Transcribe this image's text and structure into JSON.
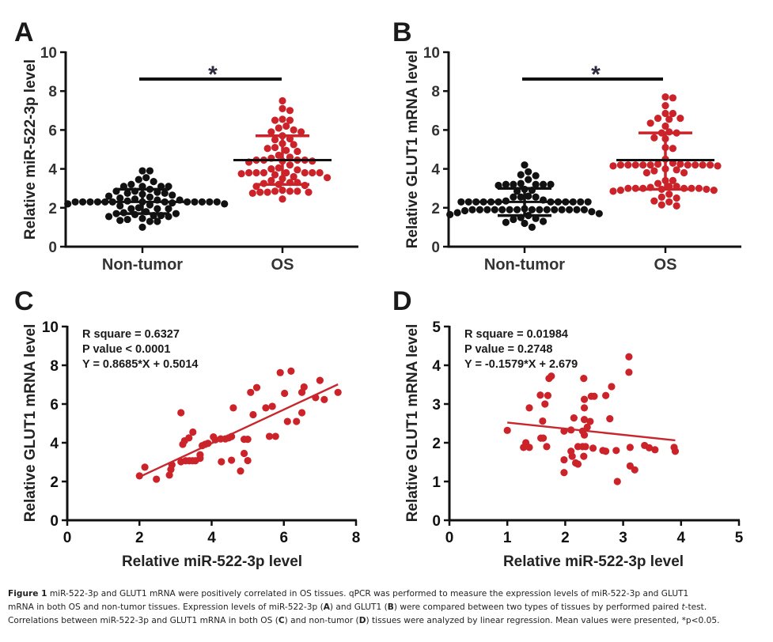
{
  "colors": {
    "nontumor": "#111111",
    "os": "#cc2229",
    "axis": "#111111",
    "mean_line": "#111111",
    "regression": "#c8262d"
  },
  "caption": {
    "label": "Figure 1",
    "line1_rest": " miR-522-3p and GLUT1 mRNA were positively correlated in OS tissues. qPCR was performed to measure the expression levels of miR-522-3p and GLUT1",
    "line2_a": "mRNA in both OS and non-tumor tissues. Expression levels of miR-522-3p (",
    "line2_b": "A",
    "line2_c": ") and GLUT1 (",
    "line2_d": "B",
    "line2_e": ") were compared between two types of tissues by performed paired ",
    "line2_f": "t",
    "line2_g": "-test.",
    "line3_a": "Correlations between miR-522-3p and GLUT1 mRNA in both OS (",
    "line3_b": "C",
    "line3_c": ") and non-tumor (",
    "line3_d": "D",
    "line3_e": ") tissues were analyzed by linear regression. Mean values were presented, *p<0.05."
  },
  "chart_data": [
    {
      "panel": "A",
      "type": "scatter",
      "subtype": "dot-plot-mean-sd",
      "title": "",
      "xlabel": "",
      "ylabel": "Relative miR-522-3p level",
      "ylim": [
        0,
        10
      ],
      "yticks": [
        "0",
        "2",
        "4",
        "6",
        "8",
        "10"
      ],
      "categories": [
        "Non-tumor",
        "OS"
      ],
      "significance": {
        "label": "*",
        "between": [
          "Non-tumor",
          "OS"
        ],
        "y": 8.6
      },
      "series": [
        {
          "name": "Non-tumor",
          "color": "#111111",
          "mean": 2.3,
          "sd_low": 1.7,
          "sd_high": 2.95,
          "values": [
            3.9,
            3.9,
            3.55,
            3.45,
            3.35,
            3.2,
            3.1,
            3.1,
            3.1,
            3.1,
            2.95,
            2.85,
            2.85,
            2.8,
            2.75,
            2.75,
            2.7,
            2.65,
            2.6,
            2.55,
            2.5,
            2.45,
            2.4,
            2.4,
            2.35,
            2.3,
            2.3,
            2.3,
            2.3,
            2.3,
            2.3,
            2.3,
            2.3,
            2.3,
            2.3,
            2.3,
            2.3,
            2.3,
            2.25,
            2.2,
            2.2,
            2.15,
            2.1,
            2.0,
            1.95,
            1.95,
            1.95,
            1.8,
            1.75,
            1.7,
            1.7,
            1.65,
            1.6,
            1.6,
            1.55,
            1.55,
            1.45,
            1.4,
            1.35,
            1.3,
            1.3,
            1.0
          ]
        },
        {
          "name": "OS",
          "color": "#cc2229",
          "mean": 4.45,
          "sd_low": 3.2,
          "sd_high": 5.7,
          "values": [
            7.5,
            7.1,
            7.0,
            6.55,
            6.5,
            6.5,
            6.2,
            6.1,
            6.0,
            5.9,
            5.9,
            5.7,
            5.55,
            5.5,
            5.3,
            5.25,
            5.1,
            5.05,
            4.95,
            4.9,
            4.7,
            4.6,
            4.55,
            4.45,
            4.45,
            4.45,
            4.45,
            4.4,
            4.4,
            4.35,
            4.2,
            4.05,
            4.0,
            3.95,
            3.8,
            3.8,
            3.8,
            3.8,
            3.8,
            3.8,
            3.8,
            3.75,
            3.7,
            3.6,
            3.55,
            3.5,
            3.4,
            3.3,
            3.3,
            3.25,
            3.2,
            3.15,
            3.1,
            2.9,
            2.85,
            2.85,
            2.85,
            2.8,
            2.8,
            2.8,
            2.75,
            2.45
          ]
        }
      ]
    },
    {
      "panel": "B",
      "type": "scatter",
      "subtype": "dot-plot-mean-sd",
      "title": "",
      "xlabel": "",
      "ylabel": "Relative GLUT1 mRNA level",
      "ylim": [
        0,
        10
      ],
      "yticks": [
        "0",
        "2",
        "4",
        "6",
        "8",
        "10"
      ],
      "categories": [
        "Non-tumor",
        "OS"
      ],
      "significance": {
        "label": "*",
        "between": [
          "Non-tumor",
          "OS"
        ],
        "y": 8.5
      },
      "series": [
        {
          "name": "Non-tumor",
          "color": "#111111",
          "mean": 2.3,
          "sd_low": 1.6,
          "sd_high": 3.0,
          "values": [
            4.2,
            3.85,
            3.7,
            3.65,
            3.45,
            3.25,
            3.2,
            3.2,
            3.2,
            3.2,
            3.2,
            3.15,
            2.95,
            2.9,
            2.85,
            2.6,
            2.55,
            2.55,
            2.55,
            2.4,
            2.35,
            2.3,
            2.3,
            2.3,
            2.3,
            2.3,
            2.3,
            2.3,
            2.3,
            2.3,
            2.3,
            2.3,
            2.3,
            1.95,
            1.9,
            1.9,
            1.9,
            1.9,
            1.9,
            1.9,
            1.9,
            1.9,
            1.9,
            1.9,
            1.9,
            1.9,
            1.9,
            1.9,
            1.9,
            1.85,
            1.8,
            1.75,
            1.7,
            1.65,
            1.6,
            1.5,
            1.45,
            1.4,
            1.3,
            1.25,
            1.2,
            1.0
          ]
        },
        {
          "name": "OS",
          "color": "#cc2229",
          "mean": 4.45,
          "sd_low": 2.95,
          "sd_high": 5.85,
          "values": [
            7.7,
            7.65,
            7.25,
            6.85,
            6.85,
            6.6,
            6.6,
            6.55,
            6.35,
            6.2,
            5.9,
            5.85,
            5.85,
            5.6,
            5.55,
            5.1,
            5.05,
            4.5,
            4.3,
            4.25,
            4.25,
            4.2,
            4.2,
            4.2,
            4.2,
            4.2,
            4.2,
            4.2,
            4.2,
            4.2,
            4.15,
            4.15,
            4.0,
            3.95,
            3.9,
            3.8,
            3.8,
            3.4,
            3.4,
            3.25,
            3.1,
            3.1,
            3.05,
            3.0,
            3.0,
            3.0,
            3.0,
            3.0,
            3.0,
            2.95,
            2.95,
            2.9,
            2.9,
            2.85,
            2.7,
            2.55,
            2.5,
            2.35,
            2.3,
            2.15,
            2.1
          ]
        }
      ]
    },
    {
      "panel": "C",
      "type": "scatter",
      "title": "",
      "xlabel": "Relative miR-522-3p level",
      "ylabel": "Relative GLUT1 mRNA level",
      "xlim": [
        0,
        8
      ],
      "ylim": [
        0,
        10
      ],
      "xticks": [
        "0",
        "2",
        "4",
        "6",
        "8"
      ],
      "yticks": [
        "0",
        "2",
        "4",
        "6",
        "8",
        "10"
      ],
      "annotations": [
        "R square = 0.6327",
        "P value < 0.0001",
        "Y = 0.8685*X + 0.5014"
      ],
      "regression": {
        "slope": 0.8685,
        "intercept": 0.5014,
        "x_range": [
          2.0,
          7.5
        ]
      },
      "color": "#cc2229",
      "points": [
        [
          2.0,
          2.29
        ],
        [
          2.15,
          2.74
        ],
        [
          2.47,
          2.12
        ],
        [
          2.83,
          2.33
        ],
        [
          2.87,
          2.62
        ],
        [
          2.9,
          2.86
        ],
        [
          3.15,
          5.55
        ],
        [
          3.15,
          3.02
        ],
        [
          3.2,
          3.92
        ],
        [
          3.25,
          4.1
        ],
        [
          3.37,
          4.25
        ],
        [
          3.48,
          4.55
        ],
        [
          3.28,
          3.07
        ],
        [
          3.38,
          3.07
        ],
        [
          3.47,
          3.07
        ],
        [
          3.55,
          3.07
        ],
        [
          3.68,
          3.2
        ],
        [
          3.68,
          3.38
        ],
        [
          3.74,
          3.85
        ],
        [
          3.82,
          3.92
        ],
        [
          3.9,
          3.97
        ],
        [
          4.05,
          4.3
        ],
        [
          4.1,
          4.15
        ],
        [
          4.25,
          4.2
        ],
        [
          4.38,
          4.2
        ],
        [
          4.47,
          4.25
        ],
        [
          4.55,
          4.32
        ],
        [
          4.27,
          3.02
        ],
        [
          4.55,
          3.1
        ],
        [
          4.6,
          5.8
        ],
        [
          4.8,
          2.54
        ],
        [
          4.9,
          3.45
        ],
        [
          4.9,
          4.18
        ],
        [
          5.0,
          4.18
        ],
        [
          5.0,
          3.08
        ],
        [
          5.08,
          6.6
        ],
        [
          5.15,
          5.45
        ],
        [
          5.25,
          6.85
        ],
        [
          5.5,
          5.8
        ],
        [
          5.68,
          5.88
        ],
        [
          5.6,
          4.33
        ],
        [
          5.77,
          4.33
        ],
        [
          5.9,
          7.62
        ],
        [
          6.02,
          6.55
        ],
        [
          6.1,
          5.1
        ],
        [
          6.2,
          7.7
        ],
        [
          6.35,
          5.1
        ],
        [
          6.5,
          6.6
        ],
        [
          6.56,
          6.88
        ],
        [
          6.5,
          5.55
        ],
        [
          6.88,
          6.33
        ],
        [
          7.0,
          7.22
        ],
        [
          7.12,
          6.23
        ],
        [
          7.5,
          6.6
        ]
      ]
    },
    {
      "panel": "D",
      "type": "scatter",
      "title": "",
      "xlabel": "Relative miR-522-3p level",
      "ylabel": "Relative GLUT1 mRNA level",
      "xlim": [
        0,
        5
      ],
      "ylim": [
        0,
        5
      ],
      "xticks": [
        "0",
        "1",
        "2",
        "3",
        "4",
        "5"
      ],
      "yticks": [
        "0",
        "1",
        "2",
        "3",
        "4",
        "5"
      ],
      "annotations": [
        "R square = 0.01984",
        "P value = 0.2748",
        "Y = -0.1579*X + 2.679"
      ],
      "regression": {
        "slope": -0.1579,
        "intercept": 2.679,
        "x_range": [
          1.0,
          3.9
        ]
      },
      "color": "#cc2229",
      "points": [
        [
          1.0,
          2.32
        ],
        [
          1.28,
          1.88
        ],
        [
          1.32,
          2.0
        ],
        [
          1.33,
          1.92
        ],
        [
          1.38,
          1.88
        ],
        [
          1.38,
          2.9
        ],
        [
          1.57,
          3.23
        ],
        [
          1.58,
          2.12
        ],
        [
          1.62,
          2.12
        ],
        [
          1.61,
          2.56
        ],
        [
          1.65,
          3.0
        ],
        [
          1.68,
          1.9
        ],
        [
          1.7,
          3.22
        ],
        [
          1.72,
          3.66
        ],
        [
          1.76,
          3.72
        ],
        [
          1.98,
          2.3
        ],
        [
          1.98,
          1.56
        ],
        [
          1.98,
          1.23
        ],
        [
          2.1,
          2.33
        ],
        [
          2.1,
          1.78
        ],
        [
          2.12,
          1.65
        ],
        [
          2.15,
          2.64
        ],
        [
          2.18,
          1.48
        ],
        [
          2.22,
          1.45
        ],
        [
          2.22,
          1.9
        ],
        [
          2.3,
          2.3
        ],
        [
          2.3,
          1.9
        ],
        [
          2.32,
          3.66
        ],
        [
          2.32,
          1.65
        ],
        [
          2.33,
          3.12
        ],
        [
          2.33,
          2.9
        ],
        [
          2.33,
          2.6
        ],
        [
          2.33,
          2.2
        ],
        [
          2.35,
          1.9
        ],
        [
          2.38,
          2.4
        ],
        [
          2.43,
          2.55
        ],
        [
          2.45,
          3.2
        ],
        [
          2.5,
          3.2
        ],
        [
          2.48,
          1.86
        ],
        [
          2.65,
          1.8
        ],
        [
          2.7,
          1.78
        ],
        [
          2.7,
          3.22
        ],
        [
          2.77,
          2.62
        ],
        [
          2.8,
          3.45
        ],
        [
          2.88,
          1.8
        ],
        [
          2.9,
          1.0
        ],
        [
          3.1,
          4.22
        ],
        [
          3.1,
          3.82
        ],
        [
          3.12,
          1.88
        ],
        [
          3.12,
          1.4
        ],
        [
          3.2,
          1.3
        ],
        [
          3.37,
          1.93
        ],
        [
          3.45,
          1.87
        ],
        [
          3.55,
          1.82
        ],
        [
          3.88,
          1.88
        ],
        [
          3.9,
          1.78
        ]
      ]
    }
  ],
  "panels": {
    "A": {
      "letter": "A",
      "ylabel": "Relative miR-522-3p level",
      "cat1": "Non-tumor",
      "cat2": "OS",
      "star": "*"
    },
    "B": {
      "letter": "B",
      "ylabel": "Relative GLUT1 mRNA level",
      "cat1": "Non-tumor",
      "cat2": "OS",
      "star": "*"
    },
    "C": {
      "letter": "C",
      "ylabel": "Relative GLUT1 mRNA level",
      "xlabel": "Relative miR-522-3p level",
      "stat1": "R square = 0.6327",
      "stat2": "P value < 0.0001",
      "stat3": "Y = 0.8685*X + 0.5014"
    },
    "D": {
      "letter": "D",
      "ylabel": "Relative GLUT1 mRNA level",
      "xlabel": "Relative miR-522-3p level",
      "stat1": "R square = 0.01984",
      "stat2": "P value = 0.2748",
      "stat3": "Y = -0.1579*X + 2.679"
    }
  }
}
